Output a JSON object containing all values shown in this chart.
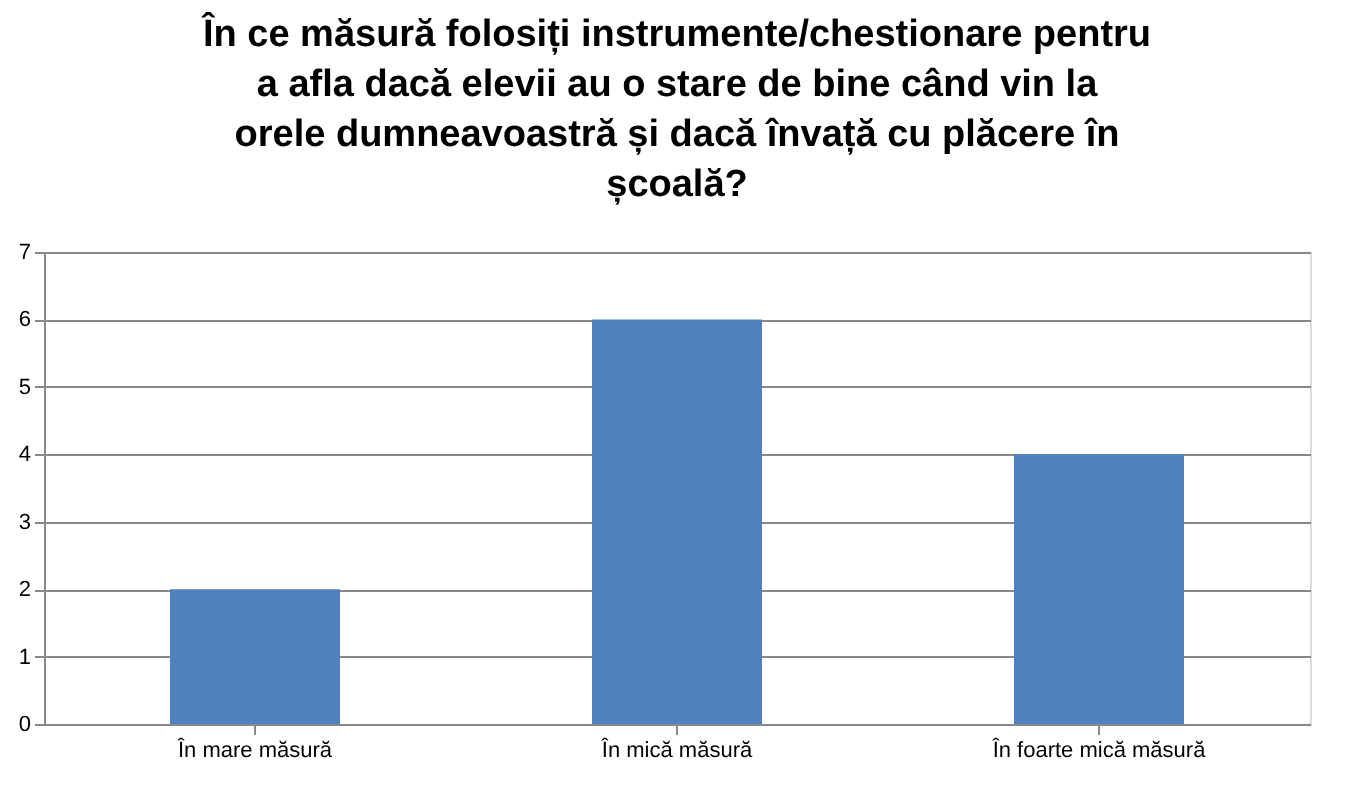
{
  "chart_data": {
    "type": "bar",
    "title": "În ce măsură folosiți instrumente/chestionare pentru a afla dacă elevii au o stare de bine când vin la orele dumneavoastră și dacă învață cu plăcere în școală?",
    "categories": [
      "În mare măsură",
      "În mică măsură",
      "În foarte mică măsură"
    ],
    "values": [
      2,
      6,
      4
    ],
    "color": "#4f81bd",
    "ylim": [
      0,
      7
    ],
    "yticks": [
      0,
      1,
      2,
      3,
      4,
      5,
      6,
      7
    ],
    "grid": "y"
  }
}
